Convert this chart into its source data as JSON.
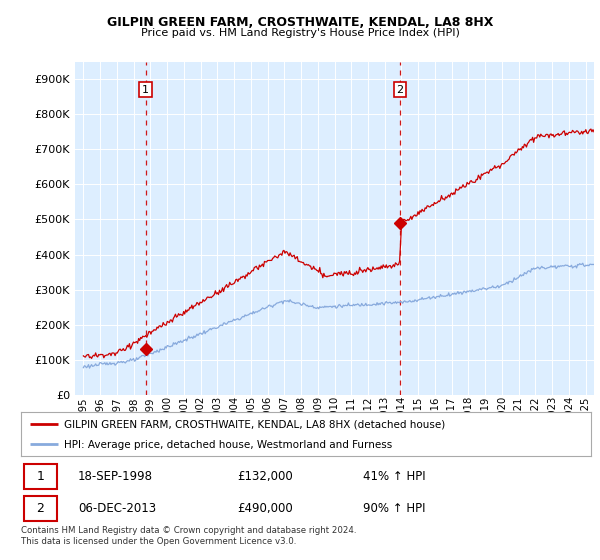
{
  "title1": "GILPIN GREEN FARM, CROSTHWAITE, KENDAL, LA8 8HX",
  "title2": "Price paid vs. HM Land Registry's House Price Index (HPI)",
  "bg_color": "#ddeeff",
  "ylabel_values": [
    "£0",
    "£100K",
    "£200K",
    "£300K",
    "£400K",
    "£500K",
    "£600K",
    "£700K",
    "£800K",
    "£900K"
  ],
  "ylim": [
    0,
    950000
  ],
  "xlim_start": 1994.5,
  "xlim_end": 2025.5,
  "sale1_date": 1998.72,
  "sale1_price": 132000,
  "sale1_label": "1",
  "sale2_date": 2013.92,
  "sale2_price": 490000,
  "sale2_label": "2",
  "legend_line1": "GILPIN GREEN FARM, CROSTHWAITE, KENDAL, LA8 8HX (detached house)",
  "legend_line2": "HPI: Average price, detached house, Westmorland and Furness",
  "table_row1": [
    "1",
    "18-SEP-1998",
    "£132,000",
    "41% ↑ HPI"
  ],
  "table_row2": [
    "2",
    "06-DEC-2013",
    "£490,000",
    "90% ↑ HPI"
  ],
  "footer": "Contains HM Land Registry data © Crown copyright and database right 2024.\nThis data is licensed under the Open Government Licence v3.0.",
  "red_color": "#cc0000",
  "blue_color": "#88aadd"
}
